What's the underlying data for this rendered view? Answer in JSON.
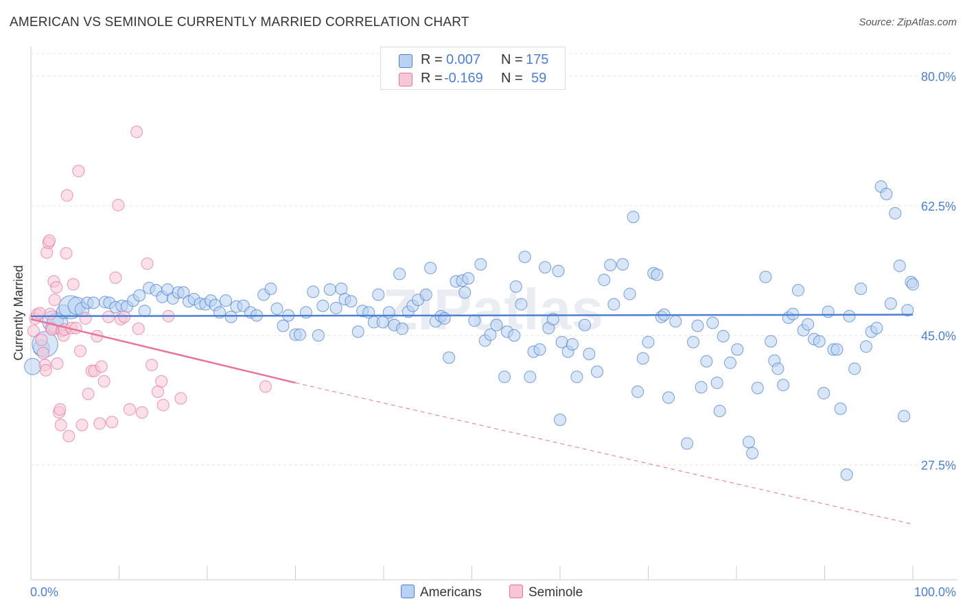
{
  "title": "AMERICAN VS SEMINOLE CURRENTLY MARRIED CORRELATION CHART",
  "source": "Source: ZipAtlas.com",
  "watermark": "ZIPatlas",
  "legend": {
    "row1": {
      "r_label": "R =",
      "r_value": "0.007",
      "n_label": "N =",
      "n_value": "175"
    },
    "row2": {
      "r_label": "R =",
      "r_value": "-0.169",
      "n_label": "N =",
      "n_value": "59"
    },
    "bottom": [
      "Americans",
      "Seminole"
    ]
  },
  "colors": {
    "american": "#4a7fd4",
    "american_fill": "#b9d2f3",
    "seminole": "#e8739a",
    "seminole_fill": "#f8c7d7",
    "grid": "#e4e4e4"
  },
  "chart_data": {
    "type": "scatter",
    "title": "AMERICAN VS SEMINOLE CURRENTLY MARRIED CORRELATION CHART",
    "xlabel": "",
    "ylabel": "Currently Married",
    "xlim": [
      0,
      100
    ],
    "ylim": [
      12,
      84
    ],
    "x_tick_labels": [
      "0.0%",
      "100.0%"
    ],
    "y_ticks": [
      27.5,
      45.0,
      62.5,
      80.0
    ],
    "y_tick_labels": [
      "27.5%",
      "45.0%",
      "62.5%",
      "80.0%"
    ],
    "grid": true,
    "legend_position": "top-center",
    "series": [
      {
        "name": "Americans",
        "trend": {
          "x": [
            0,
            100
          ],
          "y": [
            47.6,
            47.8
          ]
        },
        "points": [
          [
            0.2,
            40.8,
            14
          ],
          [
            1.2,
            43.3,
            14
          ],
          [
            1.6,
            43.8,
            22
          ],
          [
            2.5,
            46.9,
            18
          ],
          [
            3.0,
            46.6,
            18
          ],
          [
            3.7,
            48.2,
            12
          ],
          [
            4.5,
            48.8,
            20
          ],
          [
            5.2,
            49.0,
            15
          ],
          [
            5.8,
            48.5,
            12
          ],
          [
            6.4,
            49.4,
            10
          ],
          [
            7.1,
            49.4,
            10
          ],
          [
            8.4,
            49.5,
            10
          ],
          [
            8.9,
            49.4,
            10
          ],
          [
            9.6,
            48.8,
            10
          ],
          [
            10.3,
            49.0,
            10
          ],
          [
            10.9,
            48.9,
            10
          ],
          [
            11.6,
            49.7,
            10
          ],
          [
            12.3,
            50.4,
            10
          ],
          [
            12.9,
            48.3,
            10
          ],
          [
            13.4,
            51.4,
            10
          ],
          [
            14.2,
            51.1,
            10
          ],
          [
            14.9,
            50.2,
            10
          ],
          [
            15.5,
            51.2,
            10
          ],
          [
            16.1,
            50.0,
            10
          ],
          [
            16.7,
            50.8,
            10
          ],
          [
            17.3,
            50.8,
            10
          ],
          [
            17.9,
            49.6,
            10
          ],
          [
            18.5,
            49.9,
            10
          ],
          [
            19.2,
            49.3,
            10
          ],
          [
            19.8,
            49.2,
            10
          ],
          [
            20.4,
            49.7,
            10
          ],
          [
            20.9,
            49.1,
            10
          ],
          [
            21.4,
            48.1,
            10
          ],
          [
            22.1,
            49.7,
            10
          ],
          [
            22.7,
            47.5,
            10
          ],
          [
            23.3,
            48.9,
            10
          ],
          [
            24.1,
            49.0,
            10
          ],
          [
            24.9,
            48.1,
            10
          ],
          [
            25.6,
            47.7,
            10
          ],
          [
            26.4,
            50.5,
            10
          ],
          [
            27.2,
            51.3,
            10
          ],
          [
            27.9,
            48.6,
            10
          ],
          [
            28.6,
            46.3,
            10
          ],
          [
            29.2,
            47.7,
            10
          ],
          [
            30.0,
            45.1,
            10
          ],
          [
            30.5,
            45.1,
            10
          ],
          [
            31.2,
            48.1,
            10
          ],
          [
            32.0,
            50.9,
            10
          ],
          [
            32.6,
            45.0,
            10
          ],
          [
            33.1,
            49.0,
            10
          ],
          [
            33.9,
            51.2,
            10
          ],
          [
            34.6,
            48.7,
            10
          ],
          [
            35.2,
            51.3,
            10
          ],
          [
            35.6,
            49.9,
            10
          ],
          [
            36.3,
            49.6,
            10
          ],
          [
            37.1,
            45.5,
            10
          ],
          [
            37.6,
            48.3,
            10
          ],
          [
            38.3,
            48.1,
            10
          ],
          [
            38.9,
            46.8,
            10
          ],
          [
            39.4,
            50.5,
            10
          ],
          [
            39.9,
            46.8,
            10
          ],
          [
            40.6,
            48.1,
            10
          ],
          [
            41.2,
            46.4,
            10
          ],
          [
            41.8,
            53.3,
            10
          ],
          [
            42.1,
            45.9,
            10
          ],
          [
            42.8,
            48.2,
            10
          ],
          [
            43.3,
            49.0,
            10
          ],
          [
            43.9,
            49.8,
            10
          ],
          [
            44.8,
            50.5,
            10
          ],
          [
            45.3,
            54.1,
            10
          ],
          [
            45.9,
            46.9,
            10
          ],
          [
            46.5,
            47.6,
            10
          ],
          [
            46.9,
            47.3,
            10
          ],
          [
            47.4,
            42.0,
            10
          ],
          [
            48.2,
            52.3,
            10
          ],
          [
            48.9,
            52.4,
            10
          ],
          [
            49.2,
            50.8,
            10
          ],
          [
            49.6,
            52.7,
            10
          ],
          [
            50.3,
            47.0,
            10
          ],
          [
            51.0,
            54.6,
            10
          ],
          [
            51.5,
            44.3,
            10
          ],
          [
            52.1,
            45.1,
            10
          ],
          [
            52.8,
            46.4,
            10
          ],
          [
            53.7,
            39.4,
            10
          ],
          [
            54.0,
            45.5,
            10
          ],
          [
            54.8,
            45.0,
            10
          ],
          [
            55.0,
            51.6,
            10
          ],
          [
            55.6,
            49.2,
            10
          ],
          [
            56.0,
            55.6,
            10
          ],
          [
            56.6,
            39.4,
            10
          ],
          [
            57.0,
            42.8,
            10
          ],
          [
            57.7,
            43.1,
            10
          ],
          [
            58.3,
            54.2,
            10
          ],
          [
            58.7,
            46.0,
            10
          ],
          [
            59.2,
            47.2,
            10
          ],
          [
            59.8,
            53.7,
            10
          ],
          [
            60.0,
            33.6,
            10
          ],
          [
            60.2,
            44.1,
            10
          ],
          [
            60.9,
            42.8,
            10
          ],
          [
            61.4,
            43.8,
            10
          ],
          [
            61.9,
            39.4,
            10
          ],
          [
            62.8,
            46.4,
            10
          ],
          [
            63.3,
            42.5,
            10
          ],
          [
            64.2,
            40.1,
            10
          ],
          [
            65.0,
            52.5,
            10
          ],
          [
            65.7,
            54.5,
            10
          ],
          [
            66.1,
            49.2,
            10
          ],
          [
            67.1,
            54.6,
            10
          ],
          [
            67.9,
            50.6,
            10
          ],
          [
            68.3,
            61.0,
            10
          ],
          [
            68.8,
            37.4,
            10
          ],
          [
            69.4,
            41.9,
            10
          ],
          [
            70.0,
            44.1,
            10
          ],
          [
            70.6,
            53.4,
            10
          ],
          [
            71.0,
            53.2,
            10
          ],
          [
            71.5,
            47.5,
            10
          ],
          [
            71.8,
            47.8,
            10
          ],
          [
            72.3,
            36.6,
            10
          ],
          [
            73.1,
            46.9,
            10
          ],
          [
            74.4,
            30.4,
            10
          ],
          [
            75.1,
            44.1,
            10
          ],
          [
            75.6,
            46.3,
            10
          ],
          [
            76.0,
            38.0,
            10
          ],
          [
            76.6,
            41.5,
            10
          ],
          [
            77.3,
            46.7,
            10
          ],
          [
            77.8,
            38.6,
            10
          ],
          [
            78.1,
            34.8,
            10
          ],
          [
            78.5,
            44.9,
            10
          ],
          [
            79.3,
            41.3,
            10
          ],
          [
            80.1,
            43.1,
            10
          ],
          [
            81.4,
            30.6,
            10
          ],
          [
            81.8,
            29.1,
            10
          ],
          [
            82.4,
            37.9,
            10
          ],
          [
            83.3,
            52.9,
            10
          ],
          [
            83.9,
            44.2,
            10
          ],
          [
            84.3,
            41.6,
            10
          ],
          [
            84.7,
            40.5,
            10
          ],
          [
            85.3,
            38.3,
            10
          ],
          [
            85.9,
            47.4,
            10
          ],
          [
            86.4,
            47.9,
            10
          ],
          [
            87.0,
            51.1,
            10
          ],
          [
            87.6,
            45.7,
            10
          ],
          [
            88.1,
            46.5,
            10
          ],
          [
            88.8,
            44.5,
            10
          ],
          [
            89.4,
            44.2,
            10
          ],
          [
            89.9,
            37.2,
            10
          ],
          [
            90.4,
            48.2,
            10
          ],
          [
            91.0,
            43.1,
            10
          ],
          [
            91.4,
            43.1,
            10
          ],
          [
            91.8,
            35.1,
            10
          ],
          [
            92.5,
            26.2,
            10
          ],
          [
            92.8,
            47.6,
            10
          ],
          [
            93.4,
            40.5,
            10
          ],
          [
            94.1,
            51.3,
            10
          ],
          [
            94.7,
            43.5,
            10
          ],
          [
            95.3,
            45.5,
            10
          ],
          [
            95.9,
            46.0,
            10
          ],
          [
            96.4,
            65.1,
            10
          ],
          [
            97.0,
            64.1,
            10
          ],
          [
            97.5,
            49.3,
            10
          ],
          [
            98.0,
            61.5,
            10
          ],
          [
            98.5,
            54.4,
            10
          ],
          [
            99.0,
            34.1,
            10
          ],
          [
            99.4,
            48.4,
            10
          ],
          [
            99.8,
            52.2,
            10
          ],
          [
            100.0,
            51.9,
            10
          ]
        ]
      },
      {
        "name": "Seminole",
        "trend": {
          "x": [
            0,
            30
          ],
          "y": [
            47.2,
            38.6
          ]
        },
        "trend_extension": {
          "x": [
            30,
            100
          ],
          "y": [
            38.6,
            19.5
          ]
        },
        "points": [
          [
            0.3,
            45.6,
            10
          ],
          [
            0.5,
            47.3,
            10
          ],
          [
            0.7,
            47.8,
            10
          ],
          [
            1.0,
            48.0,
            10
          ],
          [
            1.2,
            44.4,
            10
          ],
          [
            1.4,
            42.6,
            10
          ],
          [
            1.6,
            41.0,
            10
          ],
          [
            1.7,
            40.3,
            10
          ],
          [
            1.8,
            56.2,
            10
          ],
          [
            2.0,
            57.5,
            10
          ],
          [
            2.1,
            57.8,
            10
          ],
          [
            2.2,
            47.9,
            10
          ],
          [
            2.3,
            46.0,
            10
          ],
          [
            2.4,
            45.8,
            10
          ],
          [
            2.6,
            52.3,
            10
          ],
          [
            2.7,
            49.8,
            10
          ],
          [
            2.9,
            51.5,
            10
          ],
          [
            3.0,
            41.2,
            10
          ],
          [
            3.2,
            34.6,
            10
          ],
          [
            3.3,
            35.0,
            10
          ],
          [
            3.4,
            32.9,
            10
          ],
          [
            3.5,
            45.6,
            10
          ],
          [
            3.7,
            45.0,
            10
          ],
          [
            3.8,
            45.8,
            10
          ],
          [
            4.0,
            56.1,
            10
          ],
          [
            4.1,
            63.9,
            10
          ],
          [
            4.3,
            31.4,
            10
          ],
          [
            4.6,
            46.0,
            10
          ],
          [
            4.8,
            51.9,
            10
          ],
          [
            5.1,
            46.0,
            10
          ],
          [
            5.4,
            67.2,
            10
          ],
          [
            5.6,
            42.9,
            10
          ],
          [
            5.8,
            32.9,
            10
          ],
          [
            6.2,
            47.3,
            10
          ],
          [
            6.5,
            37.1,
            10
          ],
          [
            6.9,
            40.2,
            10
          ],
          [
            7.2,
            40.2,
            10
          ],
          [
            7.5,
            44.9,
            10
          ],
          [
            7.8,
            33.1,
            10
          ],
          [
            8.0,
            40.8,
            10
          ],
          [
            8.3,
            38.8,
            10
          ],
          [
            8.8,
            47.5,
            10
          ],
          [
            9.2,
            33.3,
            10
          ],
          [
            9.6,
            52.8,
            10
          ],
          [
            9.9,
            62.6,
            10
          ],
          [
            10.2,
            47.2,
            10
          ],
          [
            10.6,
            47.5,
            10
          ],
          [
            11.2,
            35.0,
            10
          ],
          [
            12.0,
            72.5,
            10
          ],
          [
            12.2,
            45.9,
            10
          ],
          [
            12.6,
            34.6,
            10
          ],
          [
            13.2,
            54.7,
            10
          ],
          [
            13.7,
            41.0,
            10
          ],
          [
            14.4,
            37.4,
            10
          ],
          [
            14.8,
            38.8,
            10
          ],
          [
            15.0,
            35.6,
            10
          ],
          [
            15.6,
            47.6,
            10
          ],
          [
            17.0,
            36.5,
            10
          ],
          [
            26.6,
            38.1,
            10
          ]
        ]
      }
    ]
  }
}
